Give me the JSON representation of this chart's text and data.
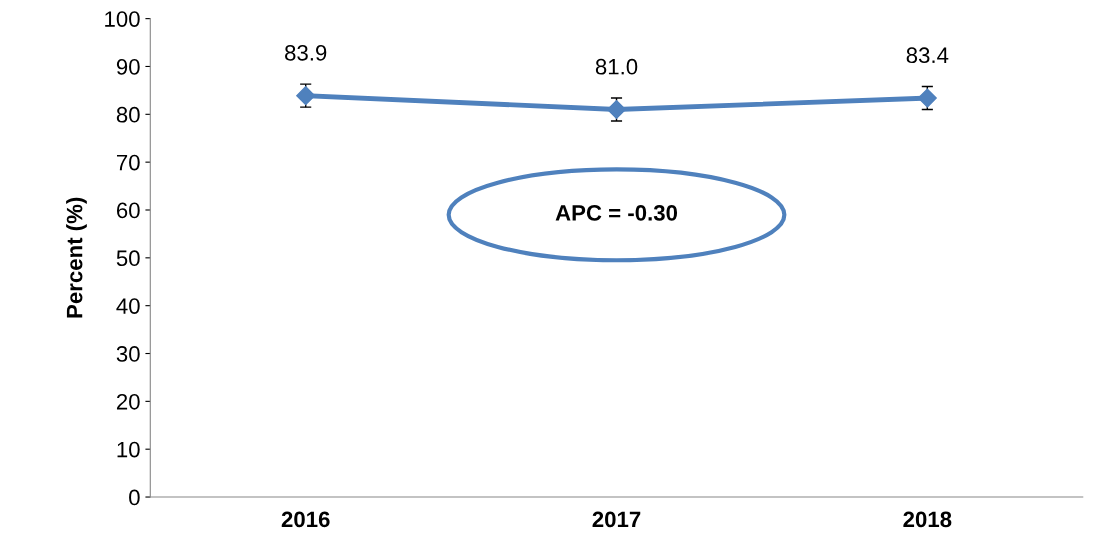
{
  "chart_data": {
    "type": "line",
    "ylabel": "Percent (%)",
    "categories": [
      "2016",
      "2017",
      "2018"
    ],
    "series": [
      {
        "color": "#4f81bd",
        "values": [
          83.9,
          81.0,
          83.4
        ],
        "value_labels": [
          "83.9",
          "81.0",
          "83.4"
        ],
        "errors": [
          2.4,
          2.4,
          2.4
        ]
      }
    ],
    "ylim": [
      0,
      100
    ],
    "yticks": [
      0,
      10,
      20,
      30,
      40,
      50,
      60,
      70,
      80,
      90,
      100
    ],
    "marker": "diamond",
    "line_style": "solid",
    "grid": false,
    "legend": false,
    "annotations": [
      "APC = -0.30"
    ]
  }
}
